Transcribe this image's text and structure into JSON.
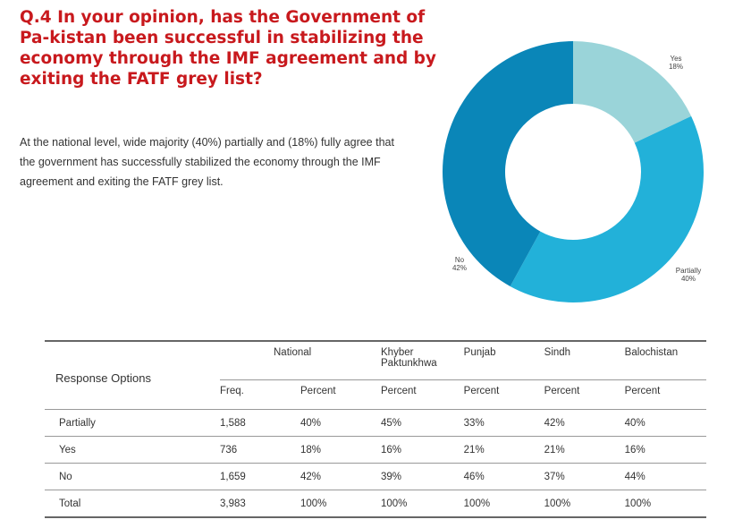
{
  "heading": {
    "question": "Q.4 In your opinion, has the Government of Pa-kistan been successful in stabilizing the economy through the IMF agreement and by exiting the FATF grey list?"
  },
  "body_text": "At the national level, wide majority (40%) partially and (18%) fully agree that the government has successfully stabilized the economy through the IMF agreement and exiting the FATF grey list.",
  "chart_data": {
    "type": "pie",
    "variant": "donut",
    "slices": [
      {
        "label": "Yes",
        "value": 18,
        "value_label": "18%",
        "color": "#9ad4d9"
      },
      {
        "label": "Partially",
        "value": 40,
        "value_label": "40%",
        "color": "#22b1d9"
      },
      {
        "label": "No",
        "value": 42,
        "value_label": "42%",
        "color": "#0a86b8"
      }
    ],
    "start": "top, clockwise",
    "legend": "none (labels beside slices)"
  },
  "table": {
    "response_options_label": "Response Options",
    "regions": [
      "National",
      "Khyber Paktunkhwa",
      "Punjab",
      "Sindh",
      "Balochistan"
    ],
    "subheaders": [
      "Freq.",
      "Percent",
      "Percent",
      "Percent",
      "Percent",
      "Percent"
    ],
    "rows": [
      {
        "option": "Partially",
        "values": [
          "1,588",
          "40%",
          "45%",
          "33%",
          "42%",
          "40%"
        ]
      },
      {
        "option": "Yes",
        "values": [
          "736",
          "18%",
          "16%",
          "21%",
          "21%",
          "16%"
        ]
      },
      {
        "option": "No",
        "values": [
          "1,659",
          "42%",
          "39%",
          "46%",
          "37%",
          "44%"
        ]
      },
      {
        "option": "Total",
        "values": [
          "3,983",
          "100%",
          "100%",
          "100%",
          "100%",
          "100%"
        ]
      }
    ]
  }
}
